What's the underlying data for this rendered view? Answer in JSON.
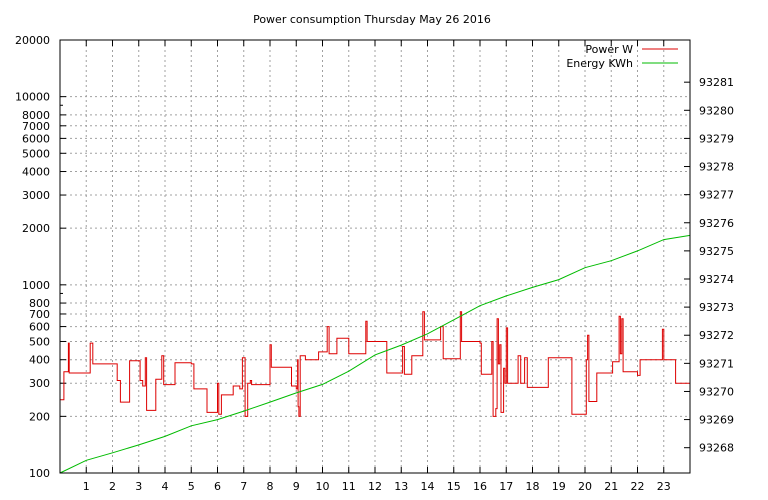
{
  "chart_data": {
    "type": "line",
    "title": "Power consumption Thursday May 26 2016",
    "x_axis": {
      "ticks": [
        1,
        2,
        3,
        4,
        5,
        6,
        7,
        8,
        9,
        10,
        11,
        12,
        13,
        14,
        15,
        16,
        17,
        18,
        19,
        20,
        21,
        22,
        23
      ],
      "range": [
        0,
        24
      ],
      "grid": true
    },
    "y_left": {
      "scale": "log",
      "range": [
        100,
        20000
      ],
      "ticks": [
        100,
        200,
        300,
        400,
        500,
        600,
        700,
        800,
        1000,
        2000,
        3000,
        4000,
        5000,
        6000,
        7000,
        8000,
        10000,
        20000
      ],
      "grid": true
    },
    "y_right": {
      "scale": "linear",
      "range": [
        93267.1,
        93282.5
      ],
      "ticks": [
        93268,
        93269,
        93270,
        93271,
        93272,
        93273,
        93274,
        93275,
        93276,
        93277,
        93278,
        93279,
        93280,
        93281
      ]
    },
    "legend": {
      "position": "top-right"
    },
    "series": [
      {
        "name": "Power W",
        "axis": "left",
        "color": "#dd0000",
        "step": true,
        "points": [
          [
            0.0,
            245
          ],
          [
            0.15,
            345
          ],
          [
            0.32,
            490
          ],
          [
            0.35,
            340
          ],
          [
            1.0,
            340
          ],
          [
            1.15,
            490
          ],
          [
            1.25,
            380
          ],
          [
            2.1,
            380
          ],
          [
            2.18,
            310
          ],
          [
            2.3,
            238
          ],
          [
            2.6,
            238
          ],
          [
            2.65,
            395
          ],
          [
            3.0,
            395
          ],
          [
            3.05,
            310
          ],
          [
            3.15,
            290
          ],
          [
            3.25,
            410
          ],
          [
            3.3,
            215
          ],
          [
            3.6,
            215
          ],
          [
            3.65,
            315
          ],
          [
            3.8,
            315
          ],
          [
            3.88,
            420
          ],
          [
            3.95,
            295
          ],
          [
            4.3,
            295
          ],
          [
            4.38,
            385
          ],
          [
            5.0,
            380
          ],
          [
            5.1,
            280
          ],
          [
            5.55,
            280
          ],
          [
            5.6,
            210
          ],
          [
            5.95,
            210
          ],
          [
            6.0,
            300
          ],
          [
            6.05,
            205
          ],
          [
            6.15,
            260
          ],
          [
            6.55,
            260
          ],
          [
            6.6,
            290
          ],
          [
            6.85,
            280
          ],
          [
            6.95,
            410
          ],
          [
            7.05,
            200
          ],
          [
            7.15,
            300
          ],
          [
            7.25,
            310
          ],
          [
            7.3,
            295
          ],
          [
            7.95,
            295
          ],
          [
            8.0,
            480
          ],
          [
            8.05,
            365
          ],
          [
            8.75,
            365
          ],
          [
            8.82,
            290
          ],
          [
            9.0,
            280
          ],
          [
            9.05,
            400
          ],
          [
            9.07,
            225
          ],
          [
            9.1,
            200
          ],
          [
            9.15,
            420
          ],
          [
            9.25,
            420
          ],
          [
            9.35,
            400
          ],
          [
            9.75,
            400
          ],
          [
            9.85,
            440
          ],
          [
            10.1,
            440
          ],
          [
            10.18,
            600
          ],
          [
            10.25,
            430
          ],
          [
            10.5,
            430
          ],
          [
            10.55,
            520
          ],
          [
            10.95,
            520
          ],
          [
            11.0,
            430
          ],
          [
            11.55,
            430
          ],
          [
            11.65,
            640
          ],
          [
            11.7,
            500
          ],
          [
            12.4,
            500
          ],
          [
            12.45,
            340
          ],
          [
            13.0,
            340
          ],
          [
            13.05,
            470
          ],
          [
            13.12,
            335
          ],
          [
            13.35,
            335
          ],
          [
            13.4,
            420
          ],
          [
            13.75,
            420
          ],
          [
            13.82,
            720
          ],
          [
            13.88,
            510
          ],
          [
            14.4,
            510
          ],
          [
            14.5,
            600
          ],
          [
            14.6,
            405
          ],
          [
            15.2,
            405
          ],
          [
            15.25,
            720
          ],
          [
            15.3,
            500
          ],
          [
            16.0,
            490
          ],
          [
            16.05,
            335
          ],
          [
            16.4,
            335
          ],
          [
            16.45,
            500
          ],
          [
            16.5,
            200
          ],
          [
            16.6,
            220
          ],
          [
            16.65,
            660
          ],
          [
            16.7,
            380
          ],
          [
            16.75,
            480
          ],
          [
            16.8,
            210
          ],
          [
            16.9,
            360
          ],
          [
            16.95,
            300
          ],
          [
            17.0,
            590
          ],
          [
            17.05,
            300
          ],
          [
            17.4,
            300
          ],
          [
            17.45,
            420
          ],
          [
            17.55,
            300
          ],
          [
            17.65,
            300
          ],
          [
            17.7,
            410
          ],
          [
            17.8,
            285
          ],
          [
            18.55,
            285
          ],
          [
            18.6,
            410
          ],
          [
            19.45,
            410
          ],
          [
            19.5,
            205
          ],
          [
            20.0,
            205
          ],
          [
            20.05,
            400
          ],
          [
            20.1,
            540
          ],
          [
            20.15,
            240
          ],
          [
            20.4,
            240
          ],
          [
            20.45,
            340
          ],
          [
            21.0,
            340
          ],
          [
            21.05,
            390
          ],
          [
            21.2,
            390
          ],
          [
            21.3,
            680
          ],
          [
            21.35,
            430
          ],
          [
            21.4,
            660
          ],
          [
            21.45,
            345
          ],
          [
            22.0,
            330
          ],
          [
            22.1,
            400
          ],
          [
            22.9,
            400
          ],
          [
            22.95,
            580
          ],
          [
            23.0,
            400
          ],
          [
            23.4,
            400
          ],
          [
            23.45,
            300
          ],
          [
            24.0,
            300
          ]
        ]
      },
      {
        "name": "Energy KWh",
        "axis": "right",
        "color": "#00bb00",
        "points": [
          [
            0,
            93267.1
          ],
          [
            1,
            93267.55
          ],
          [
            2,
            93267.82
          ],
          [
            3,
            93268.1
          ],
          [
            4,
            93268.4
          ],
          [
            5,
            93268.78
          ],
          [
            6,
            93269.0
          ],
          [
            7,
            93269.3
          ],
          [
            8,
            93269.62
          ],
          [
            9,
            93269.95
          ],
          [
            10,
            93270.25
          ],
          [
            11,
            93270.72
          ],
          [
            12,
            93271.3
          ],
          [
            13,
            93271.65
          ],
          [
            14,
            93272.05
          ],
          [
            15,
            93272.55
          ],
          [
            16,
            93273.05
          ],
          [
            17,
            93273.4
          ],
          [
            18,
            93273.7
          ],
          [
            19,
            93273.98
          ],
          [
            20,
            93274.4
          ],
          [
            21,
            93274.65
          ],
          [
            22,
            93275.0
          ],
          [
            23,
            93275.4
          ],
          [
            24,
            93275.55
          ]
        ]
      }
    ]
  }
}
